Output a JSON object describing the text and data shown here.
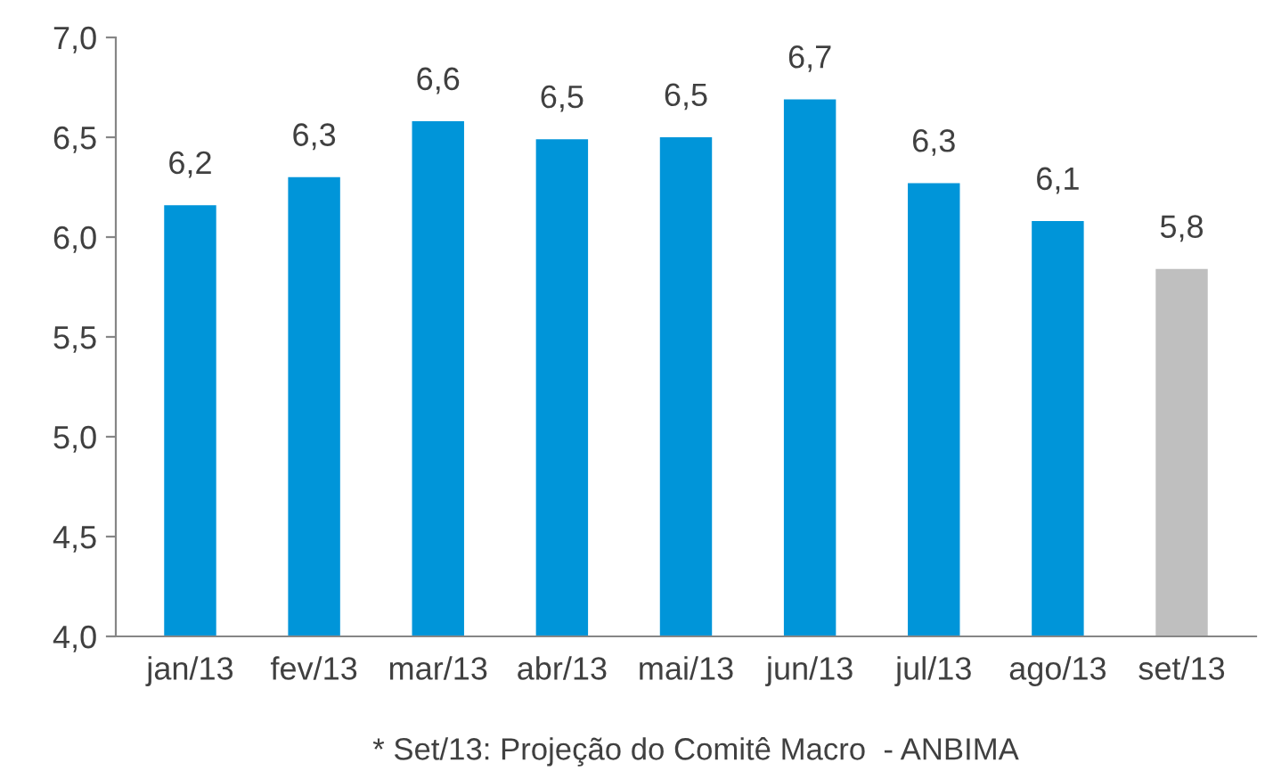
{
  "chart_data": {
    "type": "bar",
    "categories": [
      "jan/13",
      "fev/13",
      "mar/13",
      "abr/13",
      "mai/13",
      "jun/13",
      "jul/13",
      "ago/13",
      "set/13"
    ],
    "values": [
      6.16,
      6.3,
      6.58,
      6.49,
      6.5,
      6.69,
      6.27,
      6.08,
      5.84
    ],
    "value_labels": [
      "6,2",
      "6,3",
      "6,6",
      "6,5",
      "6,5",
      "6,7",
      "6,3",
      "6,1",
      "5,8"
    ],
    "colors": [
      "#0095d9",
      "#0095d9",
      "#0095d9",
      "#0095d9",
      "#0095d9",
      "#0095d9",
      "#0095d9",
      "#0095d9",
      "#bfbfbf"
    ],
    "ylim": [
      4.0,
      7.0
    ],
    "yticks": [
      {
        "value": 4.0,
        "label": "4,0"
      },
      {
        "value": 4.5,
        "label": "4,5"
      },
      {
        "value": 5.0,
        "label": "5,0"
      },
      {
        "value": 5.5,
        "label": "5,5"
      },
      {
        "value": 6.0,
        "label": "6,0"
      },
      {
        "value": 6.5,
        "label": "6,5"
      },
      {
        "value": 7.0,
        "label": "7,0"
      }
    ],
    "grid": false,
    "annotations": [
      "* Set/13: Projeção do Comitê Macro  - ANBIMA"
    ]
  }
}
